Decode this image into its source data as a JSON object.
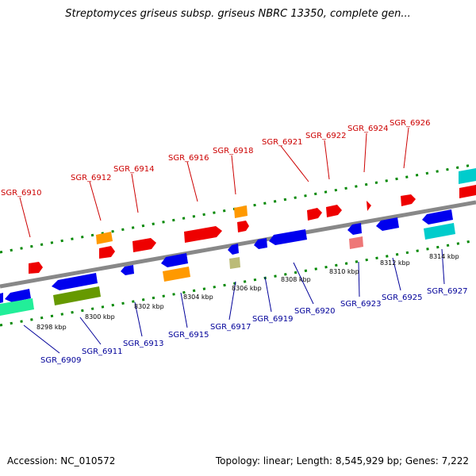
{
  "title": "Streptomyces griseus subsp. griseus NBRC 13350, complete gen...",
  "footer": {
    "accession": "Accession: NC_010572",
    "stats": "Topology: linear; Length: 8,545,929 bp; Genes: 7,222"
  },
  "colors": {
    "top_label": "#cc0000",
    "bottom_label": "#000099",
    "backbone": "#888888",
    "dots": "#008800",
    "gene_red": "#ee0000",
    "gene_blue": "#0000ee",
    "gene_orange": "#ff9900",
    "gene_cyan": "#00cccc",
    "gene_olive": "#669900",
    "gene_pink": "#ee7777",
    "gene_tan": "#bbbb77",
    "gene_mint": "#22ee99"
  },
  "top_labels": [
    "SGR_6910",
    "SGR_6912",
    "SGR_6914",
    "SGR_6916",
    "SGR_6918",
    "SGR_6921",
    "SGR_6922",
    "SGR_6924",
    "SGR_6926"
  ],
  "bottom_labels": [
    "SGR_6909",
    "SGR_6911",
    "SGR_6913",
    "SGR_6915",
    "SGR_6917",
    "SGR_6919",
    "SGR_6920",
    "SGR_6923",
    "SGR_6925",
    "SGR_6927"
  ],
  "kbp_ticks": [
    "8298 kbp",
    "8300 kbp",
    "8302 kbp",
    "8304 kbp",
    "8306 kbp",
    "8308 kbp",
    "8310 kbp",
    "8312 kbp",
    "8314 kbp"
  ]
}
